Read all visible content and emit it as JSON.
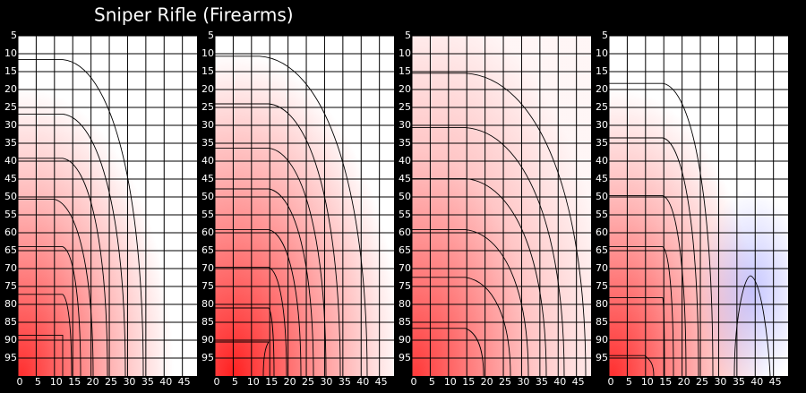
{
  "title": "Sniper Rifle (Firearms)",
  "chart_data": [
    {
      "type": "heatmap",
      "xlim": [
        0,
        49
      ],
      "ylim": [
        5,
        100
      ],
      "xticks": [
        0,
        5,
        10,
        15,
        20,
        25,
        30,
        35,
        40,
        45
      ],
      "yticks": [
        5,
        10,
        15,
        20,
        25,
        30,
        35,
        40,
        45,
        50,
        55,
        60,
        65,
        70,
        75,
        80,
        85,
        90,
        95
      ],
      "grid": true
    },
    {
      "type": "heatmap",
      "xlim": [
        0,
        49
      ],
      "ylim": [
        5,
        100
      ],
      "xticks": [
        0,
        5,
        10,
        15,
        20,
        25,
        30,
        35,
        40,
        45
      ],
      "yticks": [
        5,
        10,
        15,
        20,
        25,
        30,
        35,
        40,
        45,
        50,
        55,
        60,
        65,
        70,
        75,
        80,
        85,
        90,
        95
      ],
      "grid": true
    },
    {
      "type": "heatmap",
      "xlim": [
        0,
        49
      ],
      "ylim": [
        5,
        100
      ],
      "xticks": [
        0,
        5,
        10,
        15,
        20,
        25,
        30,
        35,
        40,
        45
      ],
      "yticks": [
        5,
        10,
        15,
        20,
        25,
        30,
        35,
        40,
        45,
        50,
        55,
        60,
        65,
        70,
        75,
        80,
        85,
        90,
        95
      ],
      "grid": true
    },
    {
      "type": "heatmap",
      "xlim": [
        0,
        49
      ],
      "ylim": [
        5,
        100
      ],
      "xticks": [
        0,
        5,
        10,
        15,
        20,
        25,
        30,
        35,
        40,
        45
      ],
      "yticks": [
        5,
        10,
        15,
        20,
        25,
        30,
        35,
        40,
        45,
        50,
        55,
        60,
        65,
        70,
        75,
        80,
        85,
        90,
        95
      ],
      "grid": true
    }
  ]
}
